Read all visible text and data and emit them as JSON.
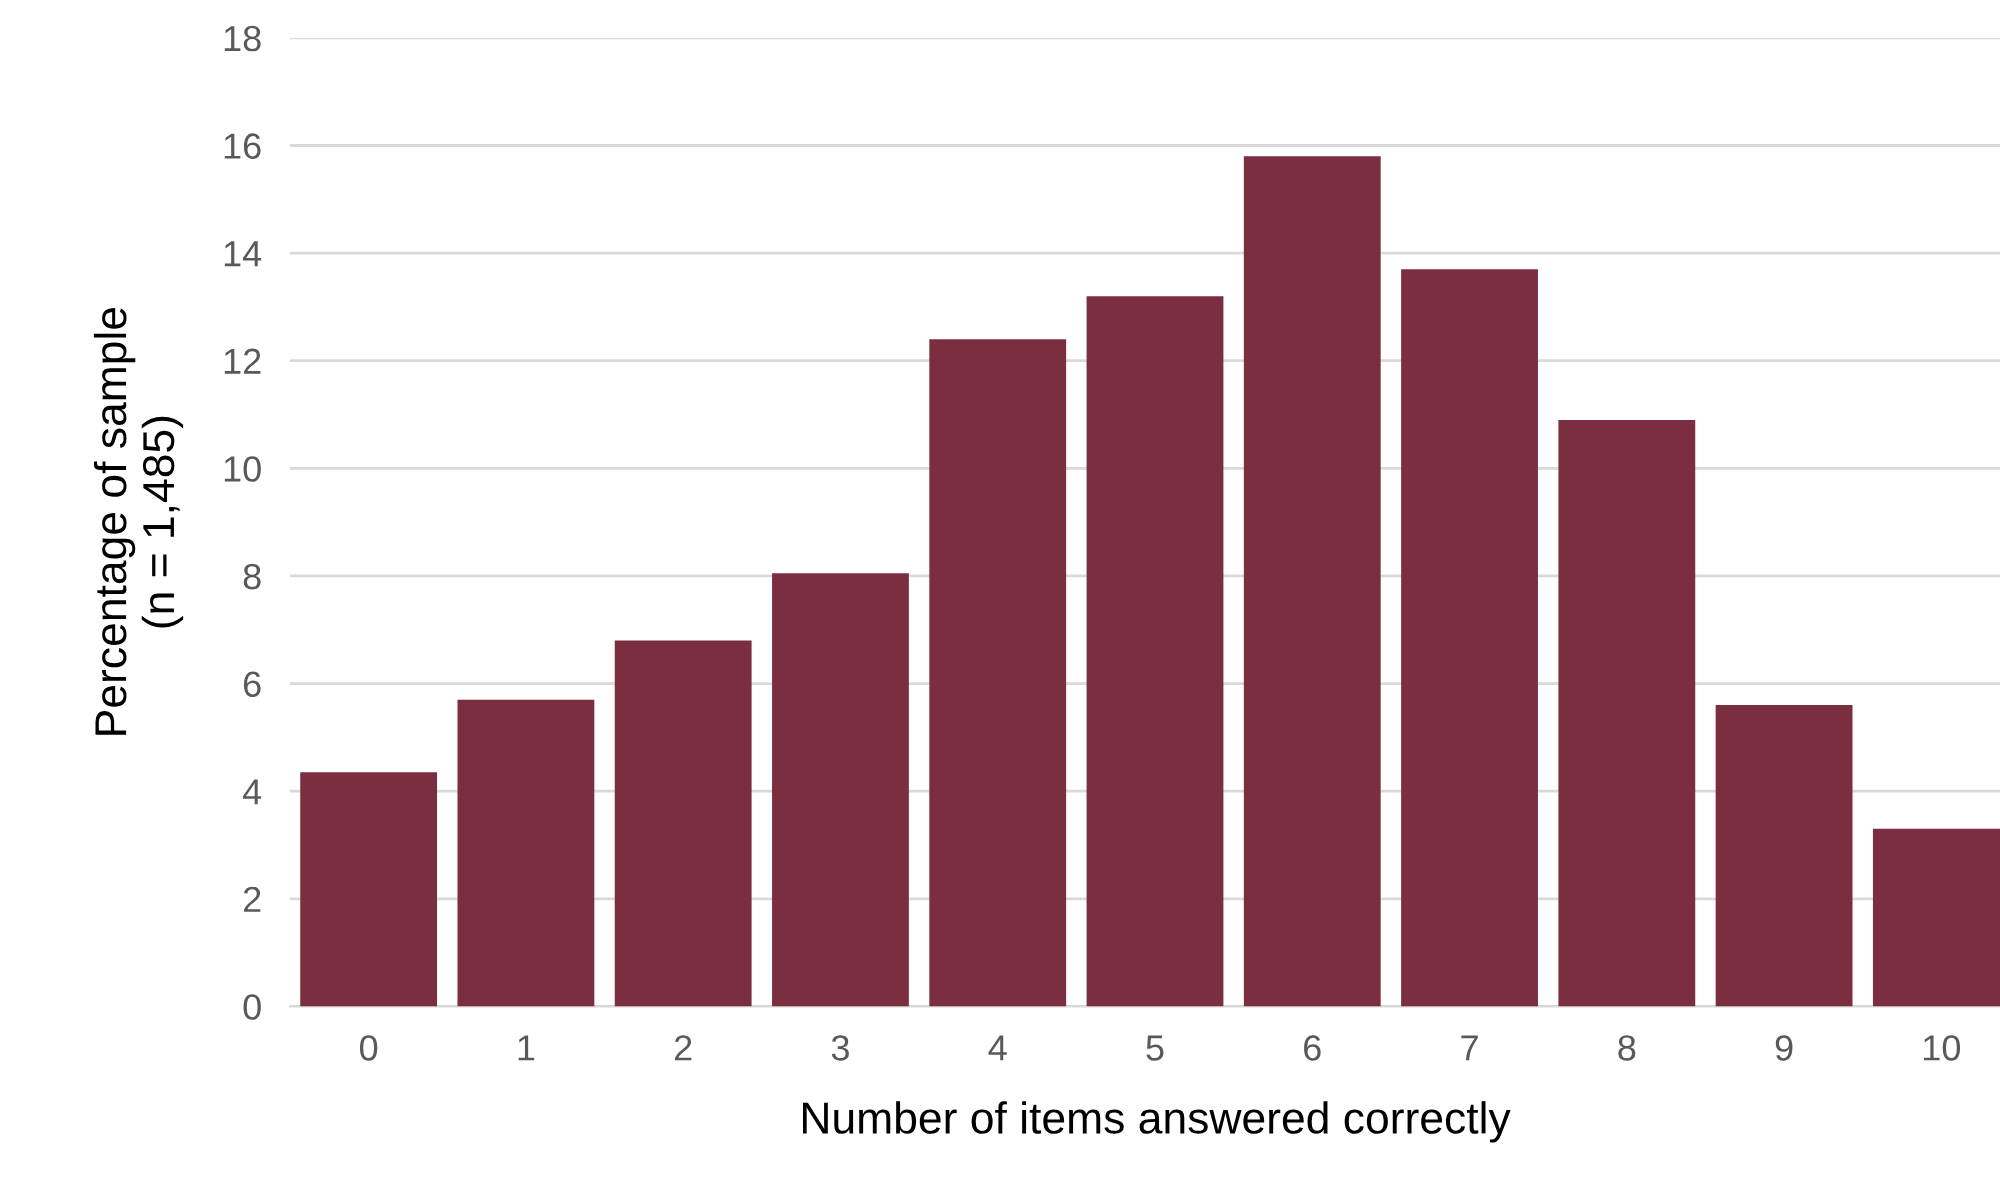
{
  "chart_data": {
    "type": "bar",
    "xlabel": "Number of items answered correctly",
    "ylabel": "Percentage of sample\n(n = 1,485)",
    "categories": [
      "0",
      "1",
      "2",
      "3",
      "4",
      "5",
      "6",
      "7",
      "8",
      "9",
      "10"
    ],
    "values": [
      4.35,
      5.7,
      6.8,
      8.05,
      12.4,
      13.2,
      15.8,
      13.7,
      10.9,
      5.6,
      3.3
    ],
    "color": "#7a2e40",
    "ylim": [
      0,
      18
    ],
    "yticks": [
      0,
      2,
      4,
      6,
      8,
      10,
      12,
      14,
      16,
      18
    ],
    "grid": "y",
    "legend": false
  }
}
